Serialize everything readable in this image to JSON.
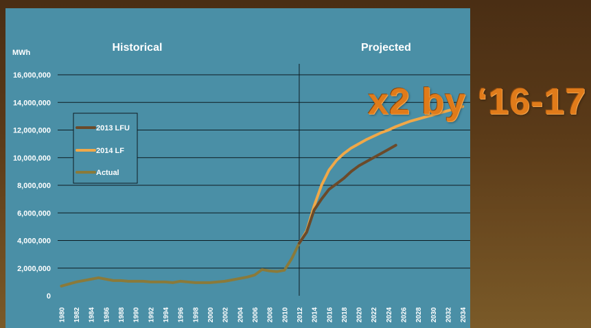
{
  "overlay": {
    "text": "x2 by ‘16-17",
    "color": "#e07b1a"
  },
  "colors": {
    "panel": "#4a8fa6",
    "grid": "#0d1a20",
    "text": "#ffffff",
    "series_2013": "#6b4a2a",
    "series_2014": "#f0a848",
    "series_actual": "#8a7a3a"
  },
  "chart_data": {
    "type": "line",
    "ylabel": "MWh",
    "section_labels": [
      "Historical",
      "Projected"
    ],
    "divider_x": 2012,
    "x_ticks": [
      1980,
      1982,
      1984,
      1986,
      1988,
      1990,
      1992,
      1994,
      1996,
      1998,
      2000,
      2002,
      2004,
      2006,
      2008,
      2010,
      2012,
      2014,
      2016,
      2018,
      2020,
      2022,
      2024,
      2026,
      2028,
      2030,
      2032,
      2034
    ],
    "xlim": [
      1979.5,
      2035
    ],
    "ylim": [
      0,
      16000000
    ],
    "y_ticks": [
      0,
      2000000,
      4000000,
      6000000,
      8000000,
      10000000,
      12000000,
      14000000,
      16000000
    ],
    "y_tick_labels": [
      "0",
      "2,000,000",
      "4,000,000",
      "6,000,000",
      "8,000,000",
      "10,000,000",
      "12,000,000",
      "14,000,000",
      "16,000,000"
    ],
    "grid": "horizontal",
    "legend_position": "left",
    "series": [
      {
        "name": "2013 LFU",
        "x": [
          2012,
          2013,
          2014,
          2015,
          2016,
          2017,
          2018,
          2019,
          2020,
          2021,
          2022,
          2023,
          2024,
          2025
        ],
        "y": [
          3800000,
          4600000,
          6200000,
          7000000,
          7700000,
          8100000,
          8500000,
          9000000,
          9400000,
          9700000,
          10000000,
          10300000,
          10600000,
          10900000
        ]
      },
      {
        "name": "2014 LF",
        "x": [
          2012,
          2013,
          2014,
          2015,
          2016,
          2017,
          2018,
          2019,
          2020,
          2021,
          2022,
          2023,
          2024,
          2025,
          2026,
          2027,
          2028,
          2029,
          2030,
          2031,
          2032,
          2033,
          2034
        ],
        "y": [
          3800000,
          4700000,
          6500000,
          8000000,
          9100000,
          9800000,
          10300000,
          10700000,
          11000000,
          11300000,
          11550000,
          11800000,
          12000000,
          12250000,
          12450000,
          12650000,
          12800000,
          12950000,
          13100000,
          13250000,
          13400000,
          13550000,
          13700000
        ]
      },
      {
        "name": "Actual",
        "x": [
          1980,
          1981,
          1982,
          1983,
          1984,
          1985,
          1986,
          1987,
          1988,
          1989,
          1990,
          1991,
          1992,
          1993,
          1994,
          1995,
          1996,
          1997,
          1998,
          1999,
          2000,
          2001,
          2002,
          2003,
          2004,
          2005,
          2006,
          2007,
          2008,
          2009,
          2010,
          2011,
          2012
        ],
        "y": [
          700000,
          850000,
          1000000,
          1100000,
          1200000,
          1300000,
          1200000,
          1100000,
          1100000,
          1050000,
          1050000,
          1050000,
          1000000,
          1000000,
          1000000,
          950000,
          1050000,
          1000000,
          950000,
          950000,
          950000,
          1000000,
          1050000,
          1150000,
          1250000,
          1350000,
          1500000,
          1900000,
          1800000,
          1750000,
          1850000,
          2700000,
          3800000
        ]
      }
    ]
  }
}
